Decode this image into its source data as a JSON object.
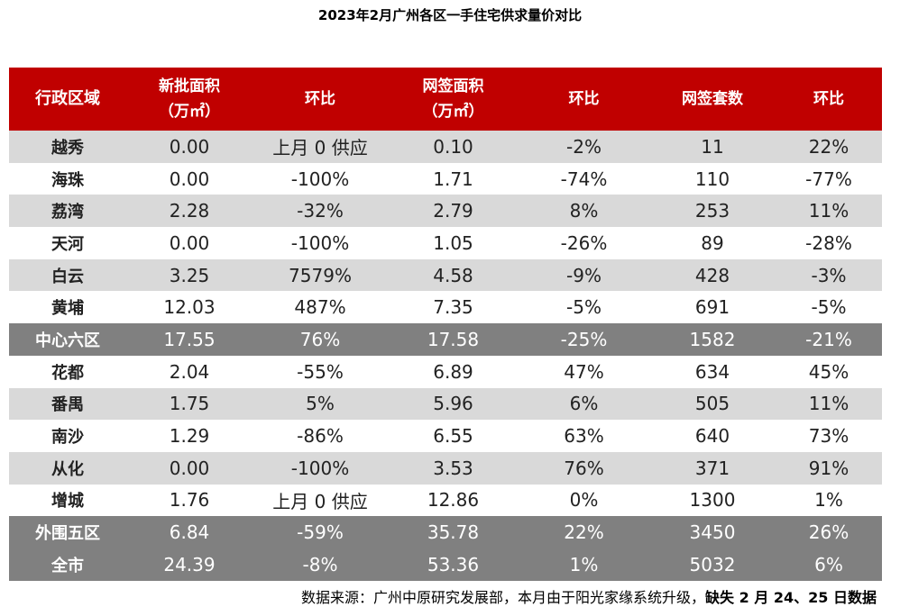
{
  "title": "2023年2月广州各区一手住宅供求量价对比",
  "table": {
    "header": [
      [
        "行政区域"
      ],
      [
        "新批面积",
        "（万㎡）"
      ],
      [
        "环比"
      ],
      [
        "网签面积",
        "（万㎡）"
      ],
      [
        "环比"
      ],
      [
        "网签套数"
      ],
      [
        "环比"
      ]
    ],
    "rows": [
      [
        "越秀",
        "0.00",
        "上月 0 供应",
        "0.10",
        "-2%",
        "11",
        "22%"
      ],
      [
        "海珠",
        "0.00",
        "-100%",
        "1.71",
        "-74%",
        "110",
        "-77%"
      ],
      [
        "荔湾",
        "2.28",
        "-32%",
        "2.79",
        "8%",
        "253",
        "11%"
      ],
      [
        "天河",
        "0.00",
        "-100%",
        "1.05",
        "-26%",
        "89",
        "-28%"
      ],
      [
        "白云",
        "3.25",
        "7579%",
        "4.58",
        "-9%",
        "428",
        "-3%"
      ],
      [
        "黄埔",
        "12.03",
        "487%",
        "7.35",
        "-5%",
        "691",
        "-5%"
      ],
      [
        "中心六区",
        "17.55",
        "76%",
        "17.58",
        "-25%",
        "1582",
        "-21%"
      ],
      [
        "花都",
        "2.04",
        "-55%",
        "6.89",
        "47%",
        "634",
        "45%"
      ],
      [
        "番禺",
        "1.75",
        "5%",
        "5.96",
        "6%",
        "505",
        "11%"
      ],
      [
        "南沙",
        "1.29",
        "-86%",
        "6.55",
        "63%",
        "640",
        "73%"
      ],
      [
        "从化",
        "0.00",
        "-100%",
        "3.53",
        "76%",
        "371",
        "91%"
      ],
      [
        "增城",
        "1.76",
        "上月 0 供应",
        "12.86",
        "0%",
        "1300",
        "1%"
      ],
      [
        "外围五区",
        "6.84",
        "-59%",
        "35.78",
        "22%",
        "3450",
        "26%"
      ],
      [
        "全市",
        "24.39",
        "-8%",
        "53.36",
        "1%",
        "5032",
        "6%"
      ]
    ]
  },
  "footer": {
    "source": "数据来源：广州中原研究发展部，本月由于阳光家缘系统升级，",
    "note": "缺失 2 月 24、25 日数据"
  }
}
